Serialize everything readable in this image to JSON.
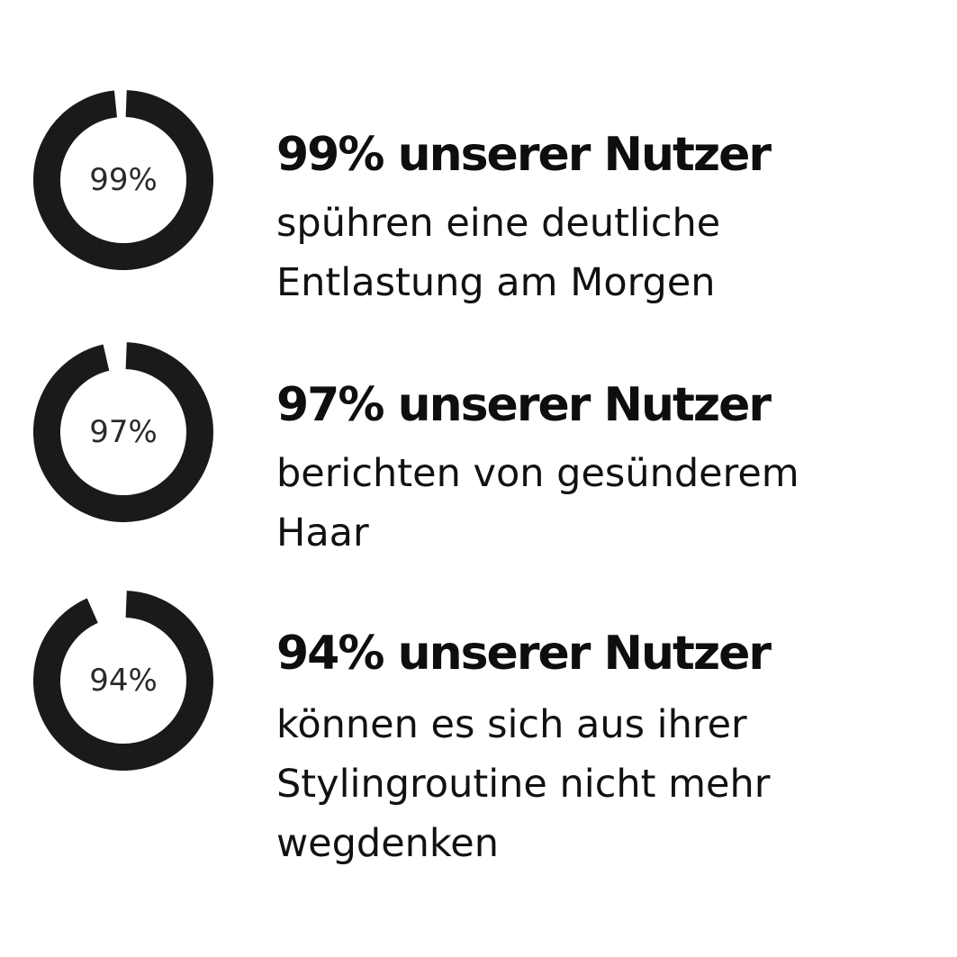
{
  "ring_color": "#1a1a1a",
  "stats": [
    {
      "percent": 99,
      "ring_label": "99%",
      "headline": "99% unserer Nutzer",
      "lines": [
        "spühren eine deutliche",
        "Entlastung am Morgen"
      ]
    },
    {
      "percent": 97,
      "ring_label": "97%",
      "headline": "97% unserer Nutzer",
      "lines": [
        "berichten von gesünderem",
        "Haar"
      ]
    },
    {
      "percent": 94,
      "ring_label": "94%",
      "headline": "94% unserer Nutzer",
      "lines": [
        "können es sich aus ihrer",
        "Stylingroutine nicht mehr",
        "wegdenken"
      ]
    }
  ]
}
